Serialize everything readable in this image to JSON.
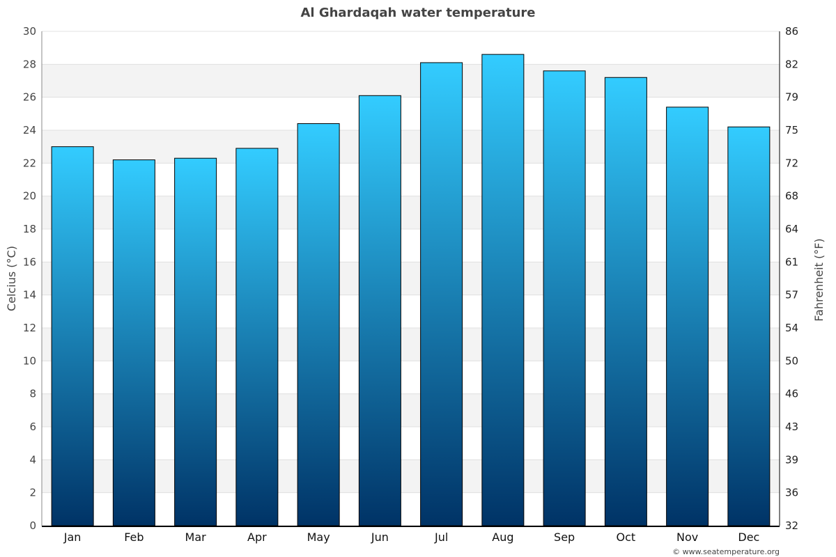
{
  "chart_data": {
    "type": "bar",
    "title": "Al Ghardaqah water temperature",
    "ylabel": "Celcius (°C)",
    "ylabel_right": "Fahrenheit (°F)",
    "categories": [
      "Jan",
      "Feb",
      "Mar",
      "Apr",
      "May",
      "Jun",
      "Jul",
      "Aug",
      "Sep",
      "Oct",
      "Nov",
      "Dec"
    ],
    "values": [
      23.0,
      22.2,
      22.3,
      22.9,
      24.4,
      26.1,
      28.1,
      28.6,
      27.6,
      27.2,
      25.4,
      24.2
    ],
    "ylim": [
      0,
      30
    ],
    "yticks": [
      0,
      2,
      4,
      6,
      8,
      10,
      12,
      14,
      16,
      18,
      20,
      22,
      24,
      26,
      28,
      30
    ],
    "yticks_right": [
      "32",
      "36",
      "39",
      "43",
      "46",
      "50",
      "54",
      "57",
      "61",
      "64",
      "68",
      "72",
      "75",
      "79",
      "82",
      "86"
    ],
    "grid": true,
    "colors": {
      "bar_top": "#33ccff",
      "bar_bottom": "#003366",
      "band": "#f3f3f3"
    },
    "credit": "© www.seatemperature.org"
  }
}
